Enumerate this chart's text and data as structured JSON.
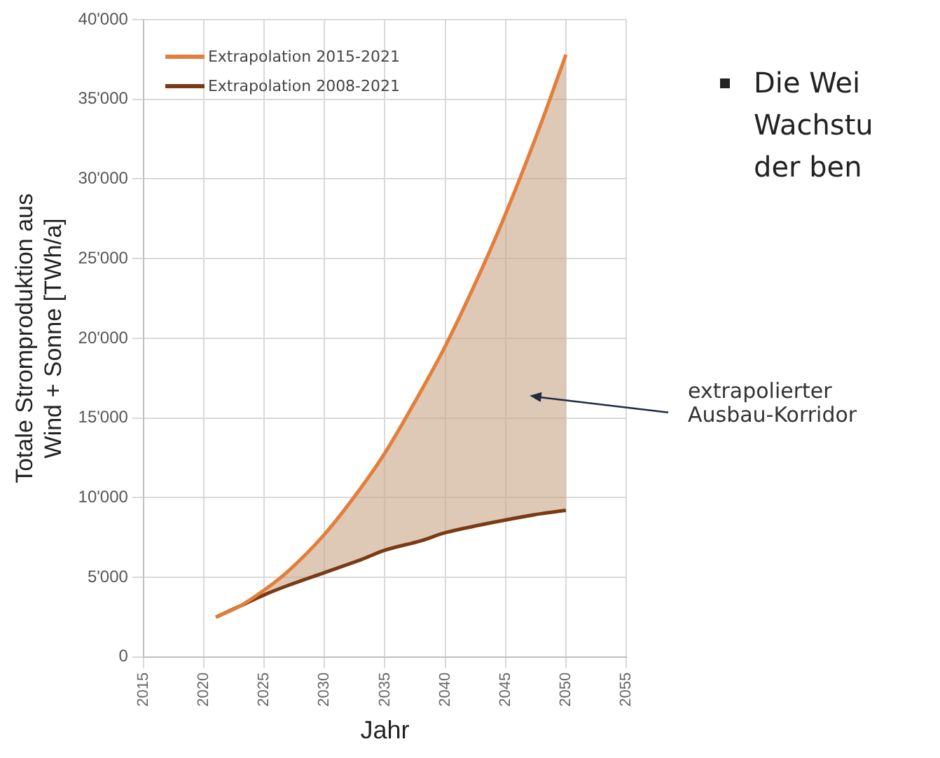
{
  "chart_data": {
    "type": "line",
    "xlabel": "Jahr",
    "ylabel": "Totale Stromproduktion aus\nWind + Sonne [TWh/a]",
    "x": [
      2021,
      2023,
      2025,
      2027,
      2030,
      2033,
      2035,
      2038,
      2040,
      2043,
      2045,
      2048,
      2050
    ],
    "series": [
      {
        "name": "Extrapolation 2015-2021",
        "color": "#e47e3a",
        "values": [
          2500,
          3200,
          4200,
          5400,
          7700,
          10600,
          12800,
          16700,
          19500,
          24300,
          27800,
          33600,
          37800
        ],
        "lower": [
          2500,
          3200,
          3900,
          4500,
          5300,
          6100,
          6700,
          7300,
          7800,
          8300,
          8600,
          9000,
          9200
        ],
        "upper": [
          2500,
          3200,
          4200,
          5400,
          7700,
          10600,
          12800,
          16700,
          19500,
          24300,
          27800,
          33600,
          37800
        ]
      },
      {
        "name": "Extrapolation 2008-2021",
        "color": "#7a3a14",
        "values": [
          2500,
          3200,
          3900,
          4500,
          5300,
          6100,
          6700,
          7300,
          7800,
          8300,
          8600,
          9000,
          9200
        ]
      }
    ],
    "xlim": [
      2015,
      2055
    ],
    "xticks": [
      2015,
      2020,
      2025,
      2030,
      2035,
      2040,
      2045,
      2050,
      2055
    ],
    "ylim": [
      0,
      40000
    ],
    "yticks": [
      0,
      {
        "value": 5000,
        "label": "5'000"
      },
      {
        "value": 10000,
        "label": "10'000"
      },
      {
        "value": 15000,
        "label": "15'000"
      },
      {
        "value": 20000,
        "label": "20'000"
      },
      {
        "value": 25000,
        "label": "25'000"
      },
      {
        "value": 30000,
        "label": "30'000"
      },
      {
        "value": 35000,
        "label": "35'000"
      },
      {
        "value": 40000,
        "label": "40'000"
      }
    ],
    "grid": true,
    "legend": "top left",
    "marker": "none",
    "line_style": "solid",
    "annotations": [
      "extrapolierter\nAusbau-Korridor",
      "Die Wei",
      "Wachstu",
      "der ben"
    ]
  }
}
